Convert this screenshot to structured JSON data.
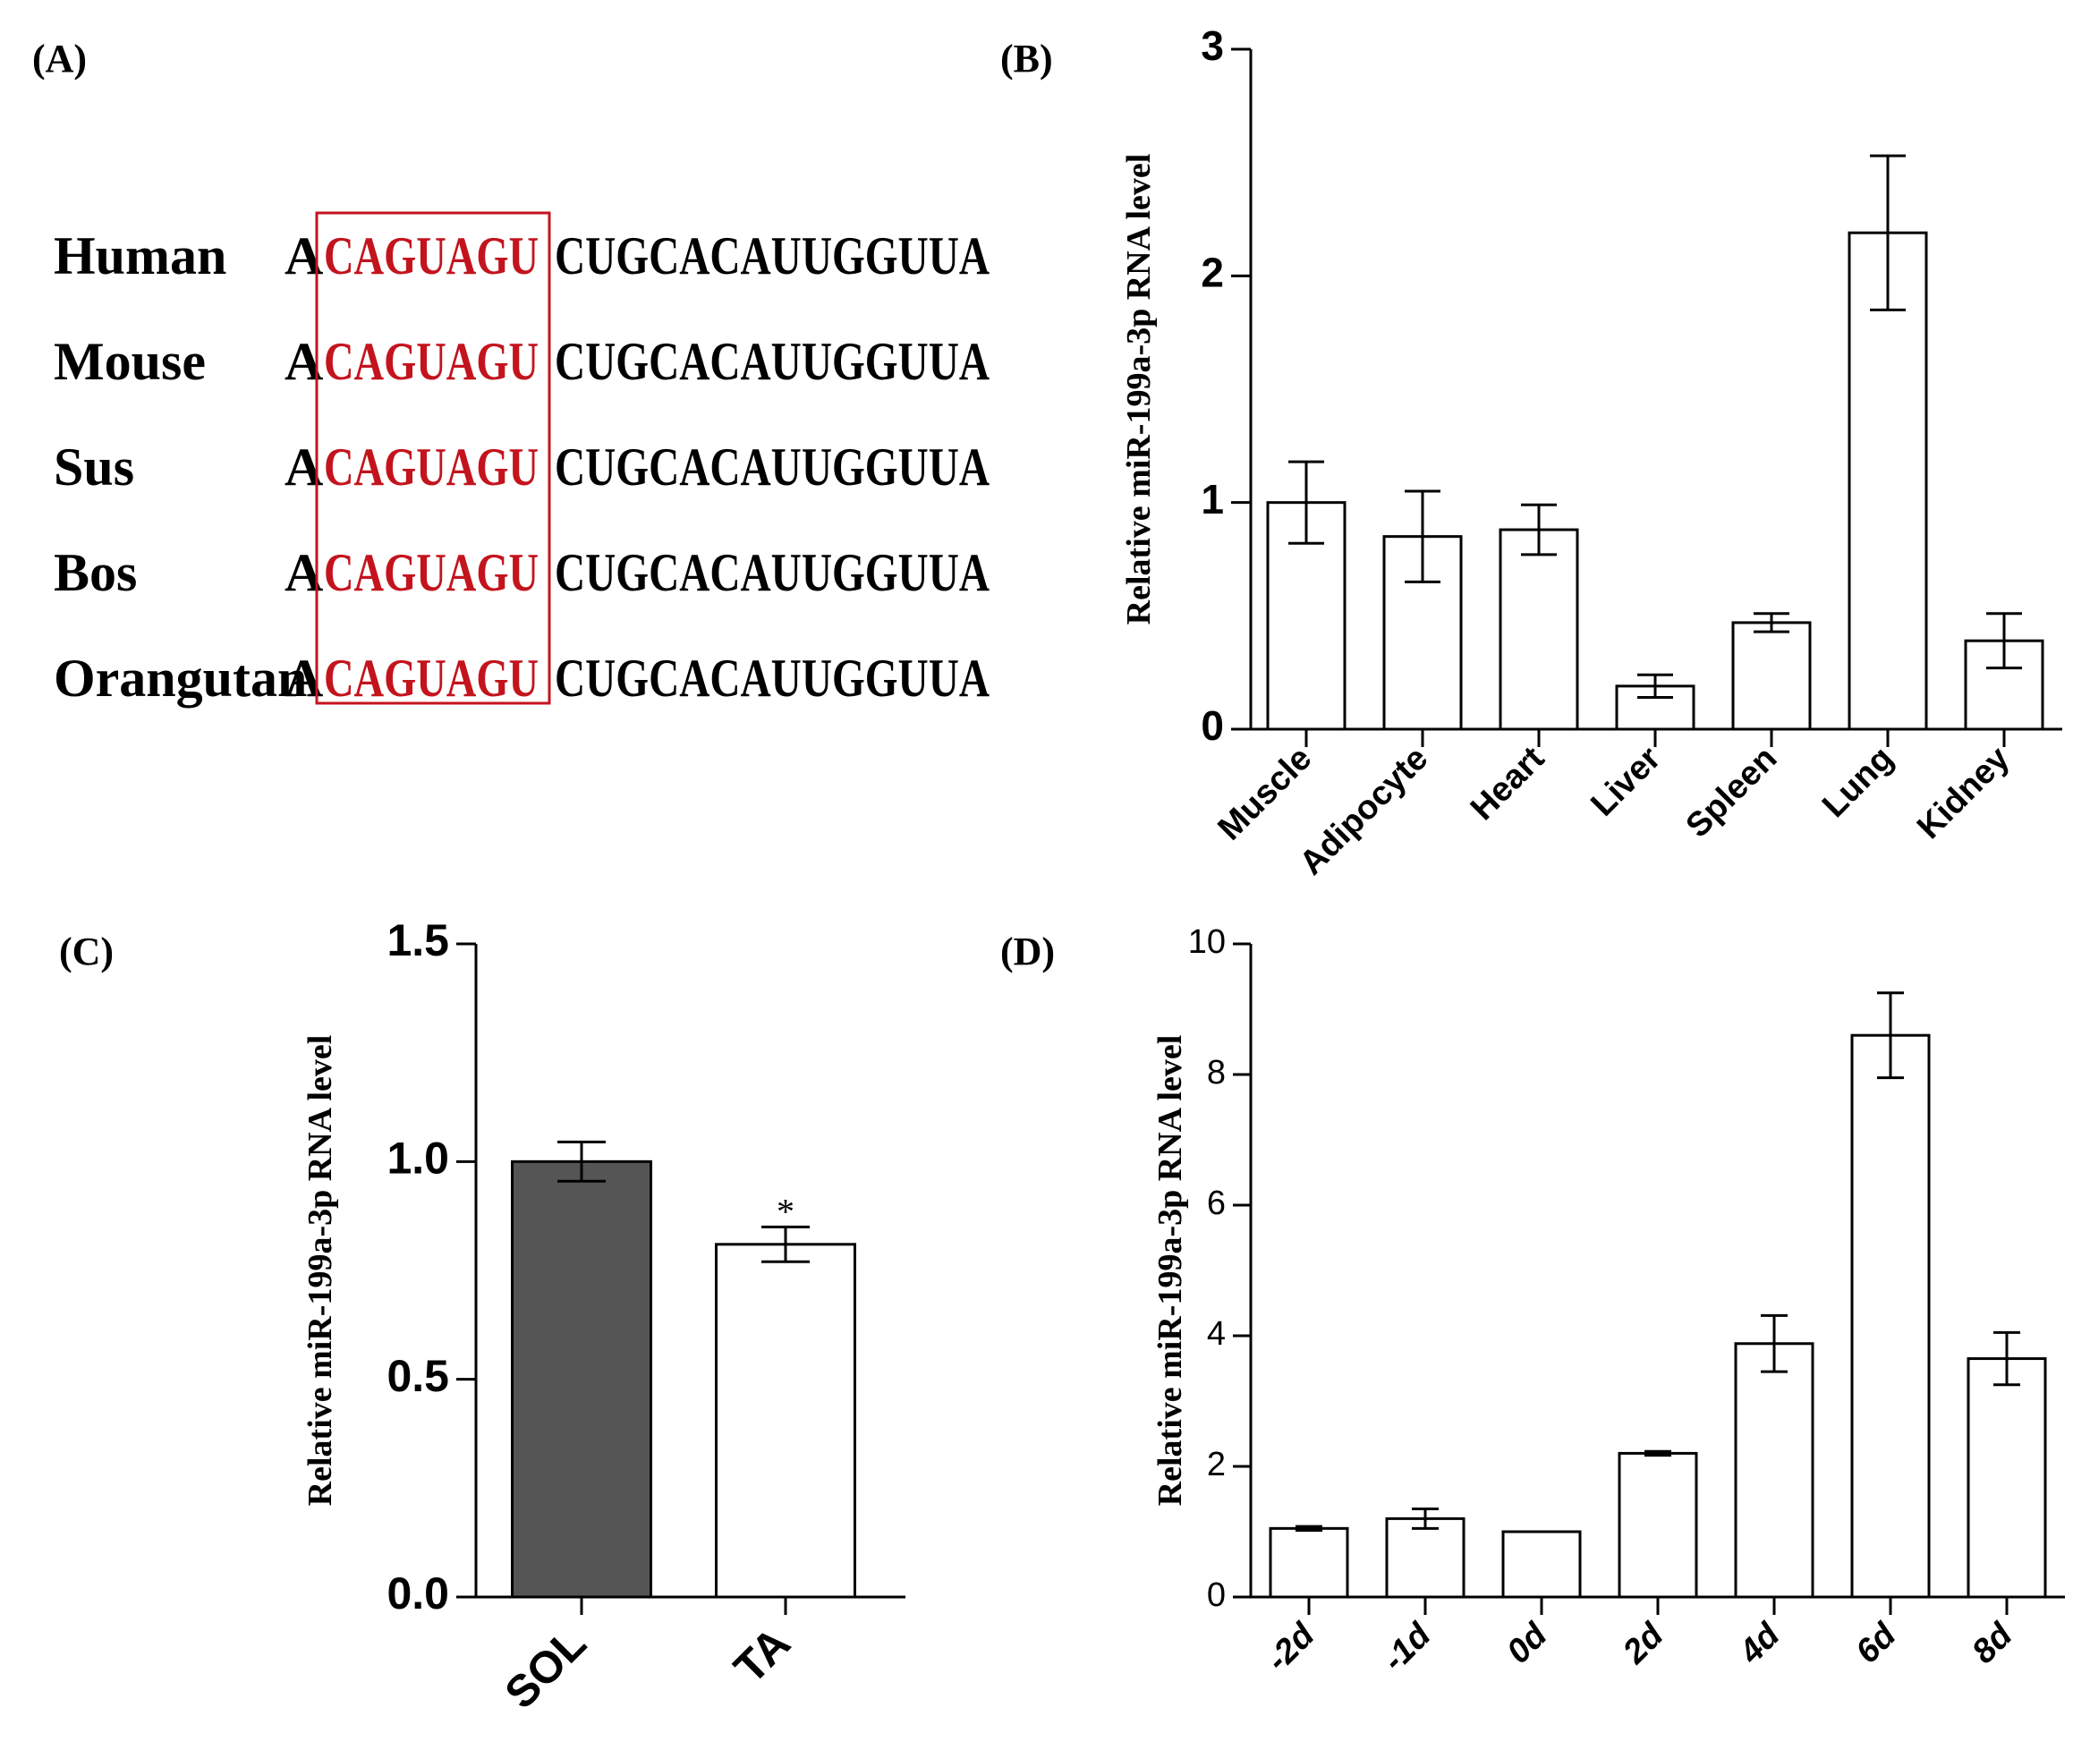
{
  "panels": {
    "a_label": "(A)",
    "b_label": "(B)",
    "c_label": "(C)",
    "d_label": "(D)"
  },
  "alignment": {
    "box_color": "#c3141e",
    "rows": [
      {
        "species": "Human",
        "prefix": "A",
        "seed": "CAGUAGU",
        "rest": "CUGCACAUUGGUUA"
      },
      {
        "species": "Mouse",
        "prefix": "A",
        "seed": "CAGUAGU",
        "rest": "CUGCACAUUGGUUA"
      },
      {
        "species": "Sus",
        "prefix": "A",
        "seed": "CAGUAGU",
        "rest": "CUGCACAUUGGUUA"
      },
      {
        "species": "Bos",
        "prefix": "A",
        "seed": "CAGUAGU",
        "rest": "CUGCACAUUGGUUA"
      },
      {
        "species": "Orangutan",
        "prefix": "A",
        "seed": "CAGUAGU",
        "rest": "CUGCACAUUGGUUA"
      }
    ]
  },
  "chart_data": [
    {
      "id": "B",
      "type": "bar",
      "title": "",
      "xlabel": "",
      "ylabel": "Relative miR-199a-3p RNA level",
      "categories": [
        "Muscle",
        "Adipocyte",
        "Heart",
        "Liver",
        "Spleen",
        "Lung",
        "Kidney"
      ],
      "values": [
        1.0,
        0.85,
        0.88,
        0.19,
        0.47,
        2.19,
        0.39
      ],
      "errors": [
        0.18,
        0.2,
        0.11,
        0.05,
        0.04,
        0.34,
        0.12
      ],
      "ylim": [
        0,
        3
      ],
      "yticks": [
        "0",
        "1",
        "2",
        "3"
      ],
      "bar_colors": [
        "#ffffff",
        "#ffffff",
        "#ffffff",
        "#ffffff",
        "#ffffff",
        "#ffffff",
        "#ffffff"
      ]
    },
    {
      "id": "C",
      "type": "bar",
      "title": "",
      "xlabel": "",
      "ylabel": "Relative miR-199a-3p RNA level",
      "categories": [
        "SOL",
        "TA"
      ],
      "values": [
        1.0,
        0.81
      ],
      "errors": [
        0.045,
        0.04
      ],
      "annotations": [
        "",
        "*"
      ],
      "ylim": [
        0,
        1.5
      ],
      "yticks": [
        "0.0",
        "0.5",
        "1.0",
        "1.5"
      ],
      "bar_colors": [
        "#555555",
        "#ffffff"
      ]
    },
    {
      "id": "D",
      "type": "bar",
      "title": "",
      "xlabel": "",
      "ylabel": "Relative miR-199a-3p RNA level",
      "categories": [
        "-2d",
        "-1d",
        "0d",
        "2d",
        "4d",
        "6d",
        "8d"
      ],
      "values": [
        1.05,
        1.2,
        1.0,
        2.2,
        3.88,
        8.6,
        3.65
      ],
      "errors": [
        0.03,
        0.15,
        0.0,
        0.03,
        0.43,
        0.65,
        0.4
      ],
      "ylim": [
        0,
        10
      ],
      "yticks": [
        "0",
        "2",
        "4",
        "6",
        "8",
        "10"
      ],
      "bar_colors": [
        "#ffffff",
        "#ffffff",
        "#ffffff",
        "#ffffff",
        "#ffffff",
        "#ffffff",
        "#ffffff"
      ]
    }
  ]
}
